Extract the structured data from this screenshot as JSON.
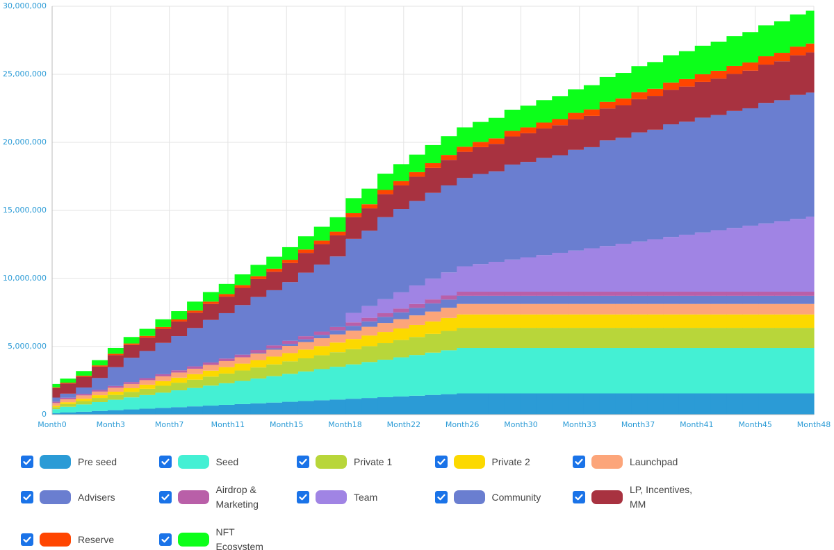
{
  "chart_data": {
    "type": "area",
    "stacked": true,
    "step": true,
    "grid": true,
    "x": [
      0,
      1,
      2,
      3,
      4,
      5,
      6,
      7,
      8,
      9,
      10,
      11,
      12,
      13,
      14,
      15,
      16,
      17,
      18,
      19,
      20,
      21,
      22,
      23,
      24,
      25,
      26,
      27,
      28,
      29,
      30,
      31,
      32,
      33,
      34,
      35,
      36,
      37,
      38,
      39,
      40,
      41,
      42,
      43,
      44,
      45,
      46,
      47,
      48
    ],
    "xlim": [
      0,
      48
    ],
    "xticks": [
      {
        "value": 0,
        "label": "Month0"
      },
      {
        "value": 3.6923,
        "label": "Month3"
      },
      {
        "value": 7.3846,
        "label": "Month7"
      },
      {
        "value": 11.0769,
        "label": "Month11"
      },
      {
        "value": 14.7692,
        "label": "Month15"
      },
      {
        "value": 18.4615,
        "label": "Month18"
      },
      {
        "value": 22.1538,
        "label": "Month22"
      },
      {
        "value": 25.8462,
        "label": "Month26"
      },
      {
        "value": 29.5385,
        "label": "Month30"
      },
      {
        "value": 33.2308,
        "label": "Month33"
      },
      {
        "value": 36.9231,
        "label": "Month37"
      },
      {
        "value": 40.6154,
        "label": "Month41"
      },
      {
        "value": 44.3077,
        "label": "Month45"
      },
      {
        "value": 48,
        "label": "Month48"
      }
    ],
    "ylim": [
      0,
      30000000
    ],
    "yticks": [
      0,
      {
        "value": 5000000,
        "label": "5,000,000"
      },
      {
        "value": 10000000,
        "label": "10,000,000"
      },
      {
        "value": 15000000,
        "label": "15,000,000"
      },
      {
        "value": 20000000,
        "label": "20,000,000"
      },
      {
        "value": 25000000,
        "label": "25,000,000"
      },
      {
        "value": 30000000,
        "label": "30,000,000"
      }
    ],
    "series": [
      {
        "name": "Pre seed",
        "color": "#2b9bd6",
        "values": [
          100000,
          156000,
          212000,
          268000,
          324000,
          380000,
          436000,
          492000,
          548000,
          604000,
          660000,
          716000,
          772000,
          828000,
          884000,
          940000,
          996000,
          1052000,
          1108000,
          1164000,
          1220000,
          1276000,
          1332000,
          1388000,
          1444000,
          1500000,
          1556000,
          1556000,
          1556000,
          1556000,
          1556000,
          1556000,
          1556000,
          1556000,
          1556000,
          1556000,
          1556000,
          1556000,
          1556000,
          1556000,
          1556000,
          1556000,
          1556000,
          1556000,
          1556000,
          1556000,
          1556000,
          1556000,
          1556000
        ]
      },
      {
        "name": "Seed",
        "color": "#44f0d4",
        "values": [
          300000,
          417000,
          534000,
          651000,
          768000,
          885000,
          1002000,
          1119000,
          1236000,
          1353000,
          1470000,
          1587000,
          1704000,
          1821000,
          1938000,
          2055000,
          2172000,
          2289000,
          2406000,
          2523000,
          2640000,
          2757000,
          2874000,
          2991000,
          3108000,
          3225000,
          3342000,
          3342000,
          3342000,
          3342000,
          3342000,
          3342000,
          3342000,
          3342000,
          3342000,
          3342000,
          3342000,
          3342000,
          3342000,
          3342000,
          3342000,
          3342000,
          3342000,
          3342000,
          3342000,
          3342000,
          3342000,
          3342000,
          3342000
        ]
      },
      {
        "name": "Private 1",
        "color": "#b8d63a",
        "values": [
          150000,
          201000,
          252000,
          303000,
          354000,
          405000,
          456000,
          507000,
          558000,
          609000,
          660000,
          711000,
          762000,
          813000,
          864000,
          915000,
          966000,
          1017000,
          1068000,
          1119000,
          1170000,
          1221000,
          1272000,
          1323000,
          1374000,
          1425000,
          1476000,
          1476000,
          1476000,
          1476000,
          1476000,
          1476000,
          1476000,
          1476000,
          1476000,
          1476000,
          1476000,
          1476000,
          1476000,
          1476000,
          1476000,
          1476000,
          1476000,
          1476000,
          1476000,
          1476000,
          1476000,
          1476000,
          1476000
        ]
      },
      {
        "name": "Private 2",
        "color": "#fcd900",
        "values": [
          100000,
          134000,
          168000,
          202000,
          236000,
          270000,
          304000,
          338000,
          372000,
          406000,
          440000,
          474000,
          508000,
          542000,
          576000,
          610000,
          644000,
          678000,
          712000,
          746000,
          780000,
          814000,
          848000,
          882000,
          916000,
          950000,
          984000,
          984000,
          984000,
          984000,
          984000,
          984000,
          984000,
          984000,
          984000,
          984000,
          984000,
          984000,
          984000,
          984000,
          984000,
          984000,
          984000,
          984000,
          984000,
          984000,
          984000,
          984000,
          984000
        ]
      },
      {
        "name": "Launchpad",
        "color": "#fca57a",
        "values": [
          200000,
          222000,
          244000,
          266000,
          288000,
          310000,
          332000,
          354000,
          376000,
          398000,
          420000,
          442000,
          464000,
          486000,
          508000,
          530000,
          552000,
          574000,
          596000,
          618000,
          640000,
          662000,
          684000,
          706000,
          728000,
          750000,
          772000,
          772000,
          772000,
          772000,
          772000,
          772000,
          772000,
          772000,
          772000,
          772000,
          772000,
          772000,
          772000,
          772000,
          772000,
          772000,
          772000,
          772000,
          772000,
          772000,
          772000,
          772000,
          772000
        ]
      },
      {
        "name": "Advisers",
        "color": "#6a7ed0",
        "values": [
          0,
          0,
          0,
          0,
          0,
          0,
          0,
          0,
          0,
          0,
          0,
          0,
          0,
          50000,
          100000,
          150000,
          200000,
          250000,
          300000,
          350000,
          400000,
          450000,
          500000,
          550000,
          600000,
          600000,
          600000,
          600000,
          600000,
          600000,
          600000,
          600000,
          600000,
          600000,
          600000,
          600000,
          600000,
          600000,
          600000,
          600000,
          600000,
          600000,
          600000,
          600000,
          600000,
          600000,
          600000,
          600000,
          600000
        ]
      },
      {
        "name": "Airdrop & Marketing",
        "color": "#b95fa8",
        "values": [
          100000,
          108000,
          116000,
          124000,
          132000,
          140000,
          148000,
          156000,
          164000,
          172000,
          180000,
          188000,
          196000,
          204000,
          212000,
          220000,
          228000,
          236000,
          244000,
          252000,
          260000,
          268000,
          276000,
          284000,
          292000,
          300000,
          300000,
          300000,
          300000,
          300000,
          300000,
          300000,
          300000,
          300000,
          300000,
          300000,
          300000,
          300000,
          300000,
          300000,
          300000,
          300000,
          300000,
          300000,
          300000,
          300000,
          300000,
          300000,
          300000
        ]
      },
      {
        "name": "Team",
        "color": "#a084e4",
        "values": [
          0,
          0,
          0,
          0,
          0,
          0,
          0,
          0,
          0,
          0,
          0,
          0,
          0,
          0,
          0,
          0,
          0,
          0,
          0,
          700000,
          866000,
          1032000,
          1198000,
          1364000,
          1530000,
          1696000,
          1862000,
          2028000,
          2194000,
          2360000,
          2526000,
          2692000,
          2858000,
          3024000,
          3190000,
          3356000,
          3522000,
          3688000,
          3854000,
          4020000,
          4186000,
          4352000,
          4518000,
          4684000,
          4850000,
          5016000,
          5182000,
          5348000,
          5514000
        ]
      },
      {
        "name": "Community",
        "color": "#6a7ed0",
        "values": [
          300000,
          300000,
          465000,
          872500,
          1380000,
          1787500,
          1995000,
          2302500,
          2510000,
          2817500,
          3125000,
          3332500,
          3640000,
          3897500,
          4055000,
          4312500,
          4670000,
          4927500,
          5185000,
          5442500,
          5534000,
          6025500,
          6117000,
          6208500,
          6300000,
          6391500,
          6491000,
          6620500,
          6650000,
          6979500,
          7009000,
          7138500,
          7168000,
          7397500,
          7427000,
          7756500,
          7786000,
          8015500,
          8045000,
          8274500,
          8304000,
          8433500,
          8463000,
          8592500,
          8622000,
          8851500,
          8881000,
          9110500,
          9110500
        ]
      },
      {
        "name": "LP, Incentives, MM",
        "color": "#a83240",
        "values": [
          700000,
          747000,
          794000,
          841000,
          888000,
          935000,
          982000,
          1029000,
          1076000,
          1123000,
          1170000,
          1217000,
          1264000,
          1311000,
          1358000,
          1405000,
          1452000,
          1499000,
          1546000,
          1593000,
          1640000,
          1687000,
          1734000,
          1781000,
          1828000,
          1875000,
          1922000,
          1969000,
          2016000,
          2063000,
          2110000,
          2157000,
          2204000,
          2251000,
          2298000,
          2345000,
          2392000,
          2439000,
          2486000,
          2533000,
          2580000,
          2627000,
          2674000,
          2721000,
          2768000,
          2815000,
          2862000,
          2909000,
          2956000
        ]
      },
      {
        "name": "Reserve",
        "color": "#ff4500",
        "values": [
          50000,
          62500,
          75000,
          87500,
          100000,
          112500,
          125000,
          137500,
          150000,
          162500,
          175000,
          187500,
          200000,
          212500,
          225000,
          237500,
          250000,
          262500,
          275000,
          287500,
          300000,
          312500,
          325000,
          337500,
          350000,
          362500,
          375000,
          387500,
          400000,
          412500,
          425000,
          437500,
          450000,
          462500,
          475000,
          487500,
          500000,
          512500,
          525000,
          537500,
          550000,
          562500,
          575000,
          587500,
          600000,
          612500,
          625000,
          637500,
          650000
        ]
      },
      {
        "name": "NFT Ecosystem",
        "color": "#0cff1a",
        "values": [
          250000,
          295000,
          340000,
          385000,
          430000,
          475000,
          520000,
          565000,
          610000,
          655000,
          700000,
          745000,
          790000,
          835000,
          880000,
          925000,
          970000,
          1015000,
          1060000,
          1105000,
          1150000,
          1195000,
          1240000,
          1285000,
          1330000,
          1375000,
          1420000,
          1465000,
          1510000,
          1555000,
          1600000,
          1645000,
          1690000,
          1735000,
          1780000,
          1825000,
          1870000,
          1915000,
          1960000,
          2005000,
          2050000,
          2095000,
          2140000,
          2185000,
          2230000,
          2275000,
          2320000,
          2365000,
          2410000
        ]
      }
    ]
  }
}
